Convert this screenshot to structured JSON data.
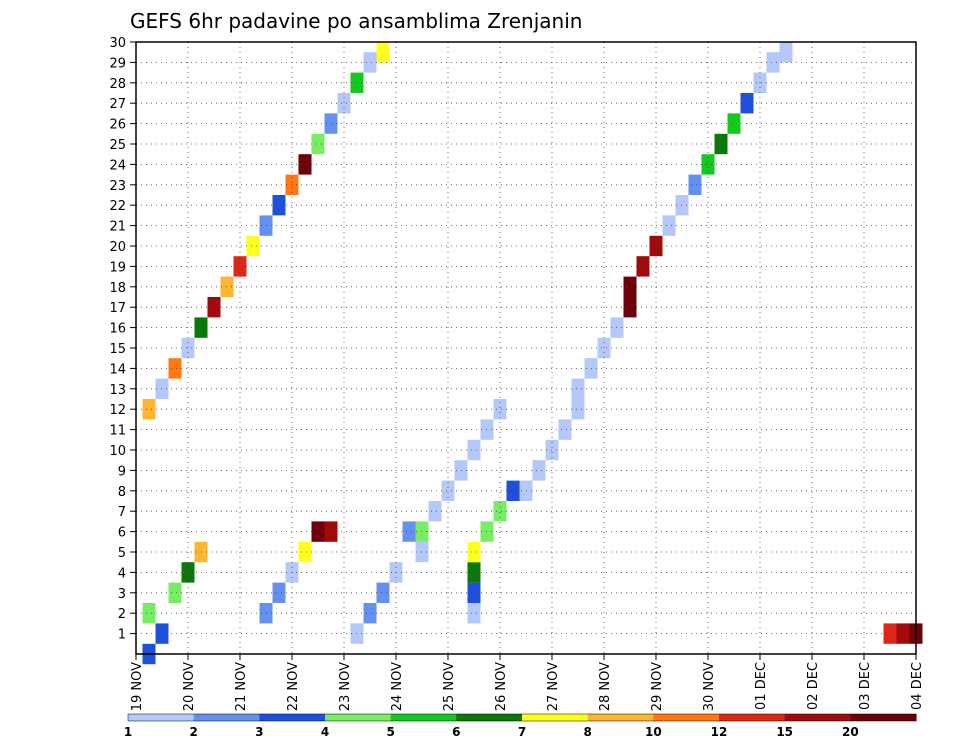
{
  "chart_data": {
    "type": "heatmap",
    "title": "GEFS 6hr padavine po ansamblima Zrenjanin",
    "x_tick_labels": [
      "19 NOV",
      "20 NOV",
      "21 NOV",
      "22 NOV",
      "23 NOV",
      "24 NOV",
      "25 NOV",
      "26 NOV",
      "27 NOV",
      "28 NOV",
      "29 NOV",
      "30 NOV",
      "01 DEC",
      "02 DEC",
      "03 DEC",
      "04 DEC"
    ],
    "y_tick_labels": [
      "1",
      "2",
      "3",
      "4",
      "5",
      "6",
      "7",
      "8",
      "9",
      "10",
      "11",
      "12",
      "13",
      "14",
      "15",
      "16",
      "17",
      "18",
      "19",
      "20",
      "21",
      "22",
      "23",
      "24",
      "25",
      "26",
      "27",
      "28",
      "29",
      "30"
    ],
    "xlim_steps": [
      0,
      60
    ],
    "ylim_members": [
      0,
      30
    ],
    "grid": true,
    "colorbar": {
      "labels": [
        "1",
        "2",
        "3",
        "4",
        "5",
        "6",
        "7",
        "8",
        "10",
        "12",
        "15",
        "20"
      ],
      "colors": [
        "#b4c8fa",
        "#6490f0",
        "#1e50dc",
        "#78ec64",
        "#14c81e",
        "#0a780a",
        "#ffff1e",
        "#ffb432",
        "#ff7814",
        "#dc2814",
        "#a00a0a",
        "#6e000a"
      ]
    },
    "cells": [
      [
        0,
        3,
        1
      ],
      [
        1,
        3,
        2
      ],
      [
        2,
        4,
        1
      ],
      [
        3,
        4,
        3
      ],
      [
        4,
        6,
        4
      ],
      [
        5,
        8,
        5
      ],
      [
        2,
        2,
        10
      ],
      [
        3,
        2,
        11
      ],
      [
        4,
        1,
        12
      ],
      [
        5,
        7,
        13
      ],
      [
        6,
        12,
        14
      ],
      [
        6,
        11,
        15
      ],
      [
        1,
        1,
        17
      ],
      [
        2,
        2,
        18
      ],
      [
        3,
        2,
        19
      ],
      [
        4,
        1,
        20
      ],
      [
        5,
        1,
        22
      ],
      [
        6,
        2,
        21
      ],
      [
        6,
        4,
        22
      ],
      [
        7,
        1,
        23
      ],
      [
        8,
        1,
        24
      ],
      [
        9,
        1,
        25
      ],
      [
        10,
        1,
        26
      ],
      [
        11,
        1,
        27
      ],
      [
        12,
        1,
        28
      ],
      [
        2,
        1,
        26
      ],
      [
        3,
        3,
        26
      ],
      [
        4,
        6,
        26
      ],
      [
        5,
        7,
        26
      ],
      [
        6,
        4,
        27
      ],
      [
        7,
        4,
        28
      ],
      [
        8,
        3,
        29
      ],
      [
        8,
        1,
        30
      ],
      [
        9,
        1,
        31
      ],
      [
        10,
        1,
        32
      ],
      [
        11,
        1,
        33
      ],
      [
        12,
        1,
        34
      ],
      [
        13,
        1,
        34
      ],
      [
        14,
        1,
        35
      ],
      [
        15,
        1,
        36
      ],
      [
        16,
        1,
        37
      ],
      [
        17,
        12,
        38
      ],
      [
        18,
        12,
        38
      ],
      [
        19,
        11,
        39
      ],
      [
        20,
        11,
        40
      ],
      [
        21,
        1,
        41
      ],
      [
        22,
        1,
        42
      ],
      [
        23,
        2,
        43
      ],
      [
        24,
        5,
        44
      ],
      [
        25,
        6,
        45
      ],
      [
        26,
        5,
        46
      ],
      [
        27,
        3,
        47
      ],
      [
        28,
        1,
        48
      ],
      [
        29,
        1,
        49
      ],
      [
        30,
        1,
        50
      ],
      [
        1,
        10,
        58
      ],
      [
        1,
        11,
        59
      ],
      [
        1,
        12,
        60
      ],
      [
        12,
        8,
        1
      ],
      [
        13,
        1,
        2
      ],
      [
        14,
        9,
        3
      ],
      [
        15,
        1,
        4
      ],
      [
        16,
        6,
        5
      ],
      [
        17,
        11,
        6
      ],
      [
        18,
        8,
        7
      ],
      [
        19,
        10,
        8
      ],
      [
        20,
        7,
        9
      ],
      [
        21,
        2,
        10
      ],
      [
        22,
        3,
        11
      ],
      [
        23,
        9,
        12
      ],
      [
        24,
        12,
        13
      ],
      [
        25,
        4,
        14
      ],
      [
        26,
        2,
        15
      ],
      [
        27,
        1,
        16
      ],
      [
        28,
        5,
        17
      ],
      [
        29,
        1,
        18
      ],
      [
        30,
        7,
        19
      ]
    ]
  }
}
